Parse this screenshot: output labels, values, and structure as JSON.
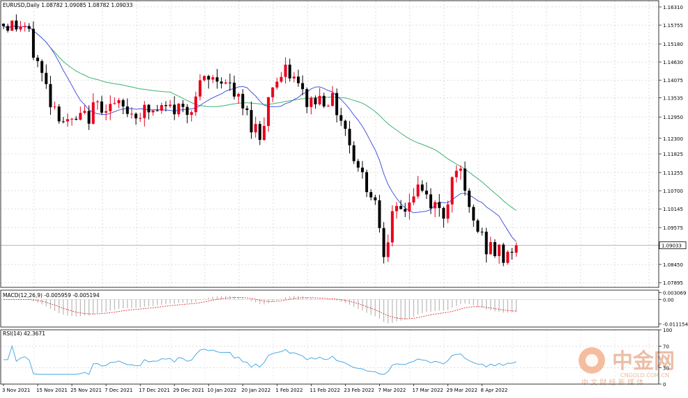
{
  "chart_data": {
    "type": "candlestick",
    "symbol_header": "EURUSD,Daily",
    "ohlc_header": "1.08782 1.09085 1.08782 1.09033",
    "price_axis_labels": [
      "1.16310",
      "1.15755",
      "1.15180",
      "1.14630",
      "1.14075",
      "1.13535",
      "1.12950",
      "1.12300",
      "1.11825",
      "1.11255",
      "1.10700",
      "1.10145",
      "1.09575",
      "1.09033",
      "1.08450",
      "1.07895"
    ],
    "price_range": [
      1.0775,
      1.165
    ],
    "current_price": 1.09033,
    "current_price_label": "1.09033",
    "x_labels": [
      "3 Nov 2021",
      "15 Nov 2021",
      "25 Nov 2021",
      "7 Dec 2021",
      "17 Dec 2021",
      "29 Dec 2021",
      "10 Jan 2022",
      "20 Jan 2022",
      "1 Feb 2022",
      "11 Feb 2022",
      "23 Feb 2022",
      "7 Mar 2022",
      "17 Mar 2022",
      "29 Mar 2022",
      "8 Apr 2022"
    ],
    "x_label_bars": [
      0,
      8,
      16,
      24,
      32,
      40,
      48,
      56,
      64,
      72,
      80,
      88,
      96,
      104,
      112
    ],
    "macd": {
      "label": "MACD(12,26,9) -0.005959 -0.005194",
      "axis_labels": [
        "0.003069",
        "0.00",
        "-0.011154"
      ],
      "range": [
        -0.0125,
        0.0042
      ]
    },
    "rsi": {
      "label": "RSI(14) 42.3671",
      "levels": [
        100,
        70,
        30,
        0
      ],
      "axis_labels": [
        "100",
        "70",
        "30",
        "0"
      ]
    },
    "watermark": {
      "name": "中金网",
      "domain": "CNGOLD.COM.CN",
      "tagline": "中 文 财 经 新 媒 体"
    }
  }
}
